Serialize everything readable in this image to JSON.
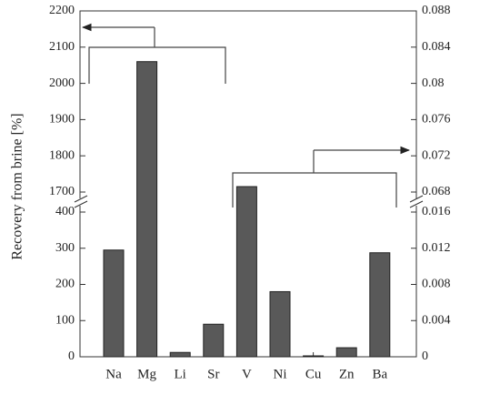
{
  "chart_data": {
    "type": "bar",
    "y_label": "Recovery from brine [%]",
    "categories": [
      "Na",
      "Mg",
      "Li",
      "Sr",
      "V",
      "Ni",
      "Cu",
      "Zn",
      "Ba"
    ],
    "color": "#595959",
    "series": [
      {
        "axis": "y",
        "values": [
          295,
          2060,
          12,
          90,
          null,
          null,
          null,
          null,
          null
        ]
      },
      {
        "axis": "y2",
        "values": [
          null,
          null,
          null,
          null,
          0.0686,
          0.0072,
          0.0001,
          0.001,
          0.0115
        ]
      }
    ],
    "y_segments": [
      {
        "ylim": [
          0,
          400
        ],
        "yticks": [
          0,
          100,
          200,
          300,
          400
        ]
      },
      {
        "ylim": [
          1700,
          2200
        ],
        "yticks": [
          1700,
          1800,
          1900,
          2000,
          2100,
          2200
        ]
      }
    ],
    "y2_segments": [
      {
        "ylim": [
          0,
          0.016
        ],
        "yticks": [
          0,
          0.004,
          0.008,
          0.012,
          0.016
        ]
      },
      {
        "ylim": [
          0.068,
          0.088
        ],
        "yticks": [
          0.068,
          0.072,
          0.076,
          0.08,
          0.084,
          0.088
        ]
      }
    ]
  }
}
